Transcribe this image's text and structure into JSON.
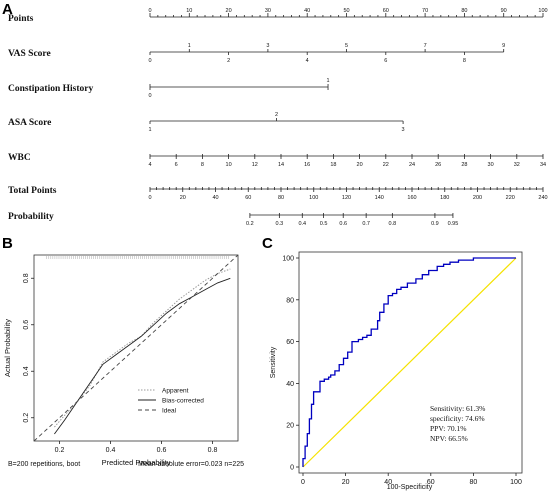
{
  "panels": {
    "a": "A",
    "b": "B",
    "c": "C"
  },
  "chart_data": [
    {
      "type": "nomogram",
      "panel": "A",
      "scales": [
        {
          "label": "Points",
          "kind": "points",
          "ticks": [
            0,
            10,
            20,
            30,
            40,
            50,
            60,
            70,
            80,
            90,
            100
          ],
          "minor_step": 2
        },
        {
          "label": "VAS Score",
          "kind": "alternating",
          "points_per_unit": 10,
          "ticks": [
            0,
            1,
            2,
            3,
            4,
            5,
            6,
            7,
            8,
            9
          ]
        },
        {
          "label": "Constipation History",
          "kind": "above",
          "points_per_unit": 45.3,
          "ticks": [
            0,
            1
          ]
        },
        {
          "label": "ASA Score",
          "kind": "alternating",
          "points_per_unit": 32.2,
          "ticks": [
            1,
            2,
            3
          ],
          "tick_offset": 1
        },
        {
          "label": "WBC",
          "kind": "below",
          "points_per_unit": 3.3,
          "tick_min": 4,
          "tick_max": 34,
          "tick_step": 2,
          "ticks": [
            4,
            6,
            8,
            10,
            12,
            14,
            16,
            18,
            20,
            22,
            24,
            26,
            28,
            30,
            32,
            34
          ]
        },
        {
          "label": "Total Points",
          "kind": "total",
          "max_points": 240,
          "ticks": [
            0,
            20,
            40,
            60,
            80,
            100,
            120,
            140,
            160,
            180,
            200,
            220,
            240
          ]
        },
        {
          "label": "Probability",
          "kind": "probability",
          "ticks": [
            "0.2",
            "0.3",
            "0.4",
            "0.5",
            "0.6",
            "0.7",
            "0.8",
            "0.9",
            "0.95"
          ],
          "total_points_at_ticks": [
            61,
            79,
            93,
            106,
            118,
            132,
            148,
            174,
            185
          ]
        }
      ]
    },
    {
      "type": "line",
      "panel": "B",
      "xlabel": "Predicted Probability",
      "ylabel": "Actual Probability",
      "xlim": [
        0.1,
        0.9
      ],
      "ylim": [
        0.1,
        0.9
      ],
      "xticks": [
        0.2,
        0.4,
        0.6,
        0.8
      ],
      "yticks": [
        0.2,
        0.4,
        0.6,
        0.8
      ],
      "series": [
        {
          "name": "Apparent",
          "style": "dotted",
          "x": [
            0.18,
            0.22,
            0.27,
            0.32,
            0.37,
            0.42,
            0.47,
            0.52,
            0.57,
            0.62,
            0.67,
            0.72,
            0.77,
            0.82,
            0.87
          ],
          "y": [
            0.16,
            0.21,
            0.27,
            0.34,
            0.44,
            0.48,
            0.52,
            0.55,
            0.61,
            0.66,
            0.71,
            0.75,
            0.79,
            0.82,
            0.84
          ]
        },
        {
          "name": "Bias-corrected",
          "style": "solid",
          "x": [
            0.18,
            0.22,
            0.27,
            0.32,
            0.37,
            0.42,
            0.47,
            0.52,
            0.57,
            0.62,
            0.67,
            0.72,
            0.77,
            0.82,
            0.87
          ],
          "y": [
            0.13,
            0.19,
            0.27,
            0.35,
            0.43,
            0.47,
            0.51,
            0.55,
            0.6,
            0.65,
            0.69,
            0.72,
            0.75,
            0.78,
            0.8
          ]
        },
        {
          "name": "Ideal",
          "style": "dashed",
          "x": [
            0.1,
            0.9
          ],
          "y": [
            0.1,
            0.9
          ]
        }
      ],
      "footer_left": "B=200 repetitions, boot",
      "footer_right": "Mean absolute error=0.023 n=225"
    },
    {
      "type": "line",
      "panel": "C",
      "xlabel": "100-Specificity",
      "ylabel": "Sensitivity",
      "xlim": [
        0,
        100
      ],
      "ylim": [
        0,
        100
      ],
      "xticks": [
        0,
        20,
        40,
        60,
        80,
        100
      ],
      "yticks": [
        0,
        20,
        40,
        60,
        80,
        100
      ],
      "series": [
        {
          "color": "#0000c0",
          "x": [
            0,
            0,
            1,
            1,
            2,
            2,
            3,
            3,
            4,
            4,
            5,
            5,
            8,
            8,
            10,
            10,
            12,
            12,
            13,
            13,
            15,
            15,
            17,
            17,
            19,
            19,
            21,
            21,
            23,
            23,
            26,
            26,
            28,
            28,
            30,
            30,
            32,
            32,
            35,
            35,
            36,
            36,
            38,
            38,
            40,
            40,
            42,
            42,
            44,
            44,
            46,
            46,
            49,
            49,
            53,
            53,
            56,
            56,
            59,
            59,
            63,
            63,
            66,
            66,
            69,
            69,
            73,
            73,
            80,
            80,
            100
          ],
          "y": [
            0,
            4,
            4,
            10,
            10,
            16,
            16,
            23,
            23,
            30,
            30,
            36,
            36,
            41,
            41,
            42,
            42,
            43,
            43,
            44,
            44,
            46,
            46,
            49,
            49,
            52,
            52,
            55,
            55,
            60,
            60,
            61,
            61,
            62,
            62,
            63,
            63,
            66,
            66,
            70,
            70,
            74,
            74,
            78,
            78,
            82,
            82,
            83,
            83,
            85,
            85,
            86,
            86,
            88,
            88,
            90,
            90,
            92,
            92,
            94,
            94,
            96,
            96,
            97,
            97,
            98,
            98,
            99,
            99,
            100,
            100
          ]
        },
        {
          "color": "#f5e200",
          "x": [
            0,
            100
          ],
          "y": [
            0,
            100
          ]
        }
      ],
      "stats": {
        "sensitivity": "Sensitivity: 61.3%",
        "specificity": "specificity: 74.6%",
        "ppv": "PPV: 70.1%",
        "npv": "NPV: 66.5%"
      }
    }
  ]
}
